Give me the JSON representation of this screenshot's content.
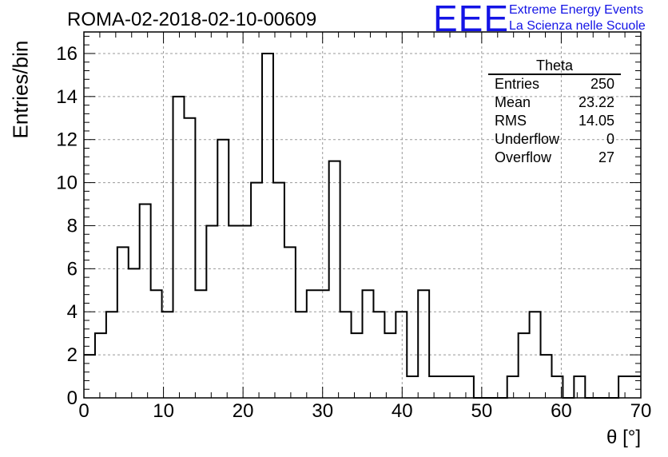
{
  "chart_data": {
    "type": "bar",
    "title": "ROMA-02-2018-02-10-00609",
    "xlabel": "θ [°]",
    "ylabel": "Entries/bin",
    "xlim": [
      0,
      70
    ],
    "ylim": [
      0,
      17
    ],
    "bin_width": 1.4,
    "x_ticks": [
      0,
      10,
      20,
      30,
      40,
      50,
      60,
      70
    ],
    "y_ticks": [
      0,
      2,
      4,
      6,
      8,
      10,
      12,
      14,
      16
    ],
    "grid": true,
    "values": [
      2,
      3,
      4,
      7,
      6,
      9,
      5,
      4,
      14,
      13,
      5,
      8,
      12,
      8,
      8,
      10,
      16,
      10,
      7,
      4,
      5,
      5,
      11,
      4,
      3,
      5,
      4,
      3,
      4,
      1,
      5,
      1,
      1,
      1,
      1,
      0,
      0,
      0,
      1,
      3,
      4,
      2,
      1,
      0,
      1,
      0,
      0,
      0,
      1,
      1
    ],
    "stats": {
      "name": "Theta",
      "entries_label": "Entries",
      "entries": "250",
      "mean_label": "Mean",
      "mean": "23.22",
      "rms_label": "RMS",
      "rms": "14.05",
      "underflow_label": "Underflow",
      "underflow": "0",
      "overflow_label": "Overflow",
      "overflow": "27"
    }
  },
  "branding": {
    "logo": "EEE",
    "line1": "Extreme Energy Events",
    "line2": "La Scienza nelle Scuole",
    "color": "#1414e6"
  }
}
